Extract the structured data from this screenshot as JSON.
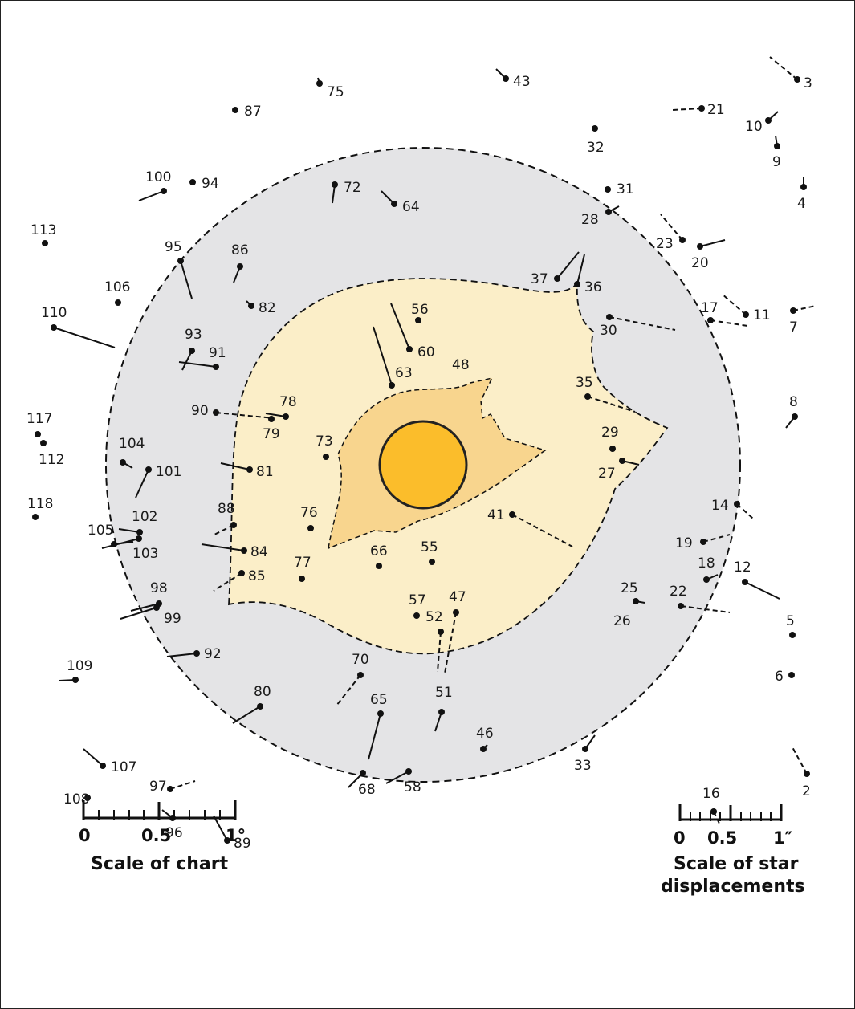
{
  "colors": {
    "outer_zone": "#e4e4e6",
    "inner_zone": "#fbeec8",
    "corona": "#f8d58e",
    "sun_fill": "#fbbd2b",
    "ink": "#111111"
  },
  "stars": [
    {
      "id": "2"
    },
    {
      "id": "3"
    },
    {
      "id": "4"
    },
    {
      "id": "5"
    },
    {
      "id": "6"
    },
    {
      "id": "7"
    },
    {
      "id": "8"
    },
    {
      "id": "9"
    },
    {
      "id": "10"
    },
    {
      "id": "11"
    },
    {
      "id": "12"
    },
    {
      "id": "14"
    },
    {
      "id": "16"
    },
    {
      "id": "17"
    },
    {
      "id": "18"
    },
    {
      "id": "19"
    },
    {
      "id": "20"
    },
    {
      "id": "21"
    },
    {
      "id": "22"
    },
    {
      "id": "23"
    },
    {
      "id": "25"
    },
    {
      "id": "26"
    },
    {
      "id": "27"
    },
    {
      "id": "28"
    },
    {
      "id": "29"
    },
    {
      "id": "30"
    },
    {
      "id": "31"
    },
    {
      "id": "32"
    },
    {
      "id": "33"
    },
    {
      "id": "35"
    },
    {
      "id": "36"
    },
    {
      "id": "37"
    },
    {
      "id": "41"
    },
    {
      "id": "43"
    },
    {
      "id": "46"
    },
    {
      "id": "47"
    },
    {
      "id": "48"
    },
    {
      "id": "51"
    },
    {
      "id": "52"
    },
    {
      "id": "55"
    },
    {
      "id": "56"
    },
    {
      "id": "57"
    },
    {
      "id": "58"
    },
    {
      "id": "60"
    },
    {
      "id": "63"
    },
    {
      "id": "64"
    },
    {
      "id": "65"
    },
    {
      "id": "66"
    },
    {
      "id": "68"
    },
    {
      "id": "70"
    },
    {
      "id": "72"
    },
    {
      "id": "73"
    },
    {
      "id": "75"
    },
    {
      "id": "76"
    },
    {
      "id": "77"
    },
    {
      "id": "78"
    },
    {
      "id": "79"
    },
    {
      "id": "80"
    },
    {
      "id": "81"
    },
    {
      "id": "82"
    },
    {
      "id": "84"
    },
    {
      "id": "85"
    },
    {
      "id": "86"
    },
    {
      "id": "87"
    },
    {
      "id": "88"
    },
    {
      "id": "89"
    },
    {
      "id": "90"
    },
    {
      "id": "91"
    },
    {
      "id": "92"
    },
    {
      "id": "93"
    },
    {
      "id": "94"
    },
    {
      "id": "95"
    },
    {
      "id": "96"
    },
    {
      "id": "97"
    },
    {
      "id": "98"
    },
    {
      "id": "99"
    },
    {
      "id": "100"
    },
    {
      "id": "101"
    },
    {
      "id": "102"
    },
    {
      "id": "103"
    },
    {
      "id": "104"
    },
    {
      "id": "105"
    },
    {
      "id": "106"
    },
    {
      "id": "107"
    },
    {
      "id": "108"
    },
    {
      "id": "109"
    },
    {
      "id": "110"
    },
    {
      "id": "112"
    },
    {
      "id": "113"
    },
    {
      "id": "117"
    },
    {
      "id": "118"
    }
  ],
  "scale_chart": {
    "title": "Scale of chart",
    "tick_labels": [
      "0",
      "0.5",
      "1°"
    ]
  },
  "scale_displacement": {
    "title_line1": "Scale of star",
    "title_line2": "displacements",
    "tick_labels": [
      "0",
      "0.5",
      "1″"
    ]
  }
}
